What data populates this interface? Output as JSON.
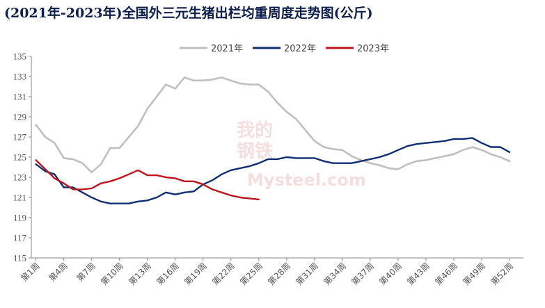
{
  "chart_data": {
    "type": "line",
    "title": "(2021年-2023年)全国外三元生猪出栏均重周度走势图(公斤)",
    "watermark": [
      "我的",
      "钢铁",
      "Mysteel.com"
    ],
    "xlabel": "",
    "ylabel": "",
    "ylim": [
      115,
      135
    ],
    "yticks": [
      115,
      117,
      119,
      121,
      123,
      125,
      127,
      129,
      131,
      133,
      135
    ],
    "xticks": [
      "第1周",
      "第4周",
      "第7周",
      "第10周",
      "第13周",
      "第16周",
      "第19周",
      "第22周",
      "第25周",
      "第28周",
      "第31周",
      "第34周",
      "第37周",
      "第40周",
      "第43周",
      "第46周",
      "第49周",
      "第52周"
    ],
    "x_count": 53,
    "legend_position": "top",
    "series": [
      {
        "name": "2021年",
        "color": "#bfbfbf",
        "values": [
          128.2,
          127.0,
          126.4,
          124.9,
          124.8,
          124.4,
          123.5,
          124.3,
          125.9,
          125.9,
          127.0,
          128.1,
          129.8,
          131.0,
          132.2,
          131.8,
          132.9,
          132.6,
          132.6,
          132.7,
          132.9,
          132.6,
          132.3,
          132.2,
          132.2,
          131.5,
          130.4,
          129.5,
          128.8,
          127.7,
          126.6,
          126.0,
          125.8,
          125.7,
          125.1,
          124.7,
          124.4,
          124.2,
          123.9,
          123.8,
          124.3,
          124.6,
          124.7,
          124.9,
          125.1,
          125.3,
          125.7,
          126.0,
          125.7,
          125.3,
          125.0,
          124.6
        ]
      },
      {
        "name": "2022年",
        "color": "#0e2f73",
        "values": [
          124.3,
          123.6,
          123.3,
          122.0,
          122.0,
          121.5,
          121.0,
          120.6,
          120.4,
          120.4,
          120.4,
          120.6,
          120.7,
          121.0,
          121.5,
          121.3,
          121.5,
          121.6,
          122.3,
          122.7,
          123.3,
          123.7,
          123.9,
          124.1,
          124.4,
          124.8,
          124.8,
          125.0,
          124.9,
          124.9,
          124.9,
          124.6,
          124.4,
          124.4,
          124.4,
          124.6,
          124.8,
          125.0,
          125.3,
          125.7,
          126.1,
          126.3,
          126.4,
          126.5,
          126.6,
          126.8,
          126.8,
          126.9,
          126.4,
          126.0,
          126.0,
          125.5
        ]
      },
      {
        "name": "2023年",
        "color": "#c0141c",
        "values": [
          124.7,
          123.8,
          122.9,
          122.4,
          121.8,
          121.8,
          121.9,
          122.4,
          122.6,
          122.9,
          123.3,
          123.7,
          123.2,
          123.2,
          123.0,
          122.9,
          122.6,
          122.6,
          122.3,
          121.8,
          121.5,
          121.2,
          121.0,
          120.9,
          120.8
        ]
      }
    ]
  }
}
